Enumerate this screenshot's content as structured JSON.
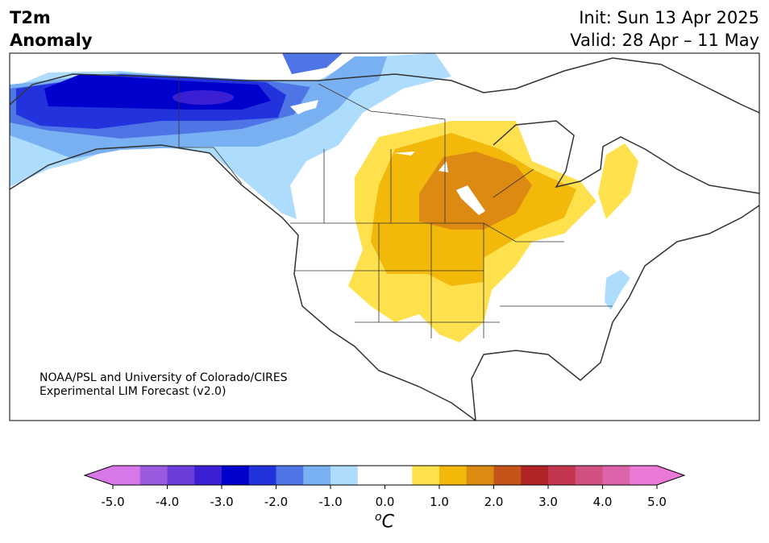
{
  "title": {
    "line1": "T2m",
    "line2": "Anomaly"
  },
  "info": {
    "init": "Init: Sun 13 Apr 2025",
    "valid": "Valid: 28 Apr – 11 May"
  },
  "credit": {
    "line1": "NOAA/PSL and University of Colorado/CIRES",
    "line2": "Experimental LIM Forecast (v2.0)"
  },
  "colorbar": {
    "unit_sup": "o",
    "unit": "C",
    "min": -5.0,
    "max": 5.0,
    "step": 0.5,
    "ticks": [
      "-5.0",
      "-4.0",
      "-3.0",
      "-2.0",
      "-1.0",
      "0.0",
      "1.0",
      "2.0",
      "3.0",
      "4.0",
      "5.0"
    ],
    "colors": [
      "#d877e8",
      "#9b59e0",
      "#6a3ddb",
      "#3a1fd4",
      "#0000cc",
      "#2233dd",
      "#4f74e6",
      "#79b0f2",
      "#addcfd",
      "#ffffff",
      "#ffffff",
      "#ffe04d",
      "#f2b90a",
      "#dd8a13",
      "#c55418",
      "#b02426",
      "#c43650",
      "#d0507f",
      "#dd64aa",
      "#e979d4"
    ]
  }
}
